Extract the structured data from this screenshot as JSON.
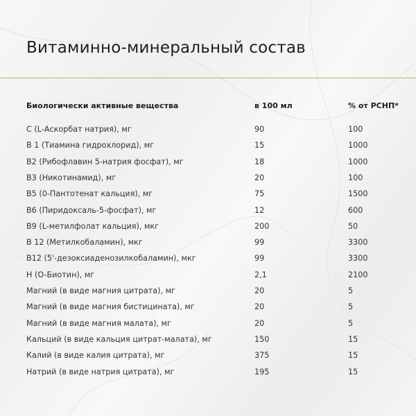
{
  "title": "Витаминно-минеральный состав",
  "accent_color": "#c9a97a",
  "table": {
    "headers": [
      "Биологически активные вещества",
      "в 100 мл",
      "% от РСНП*"
    ],
    "rows": [
      [
        "C (L-Аскорбат натрия), мг",
        "90",
        "100"
      ],
      [
        "B 1 (Тиамина гидрохлорид), мг",
        "15",
        "1000"
      ],
      [
        "B2 (Рибофлавин 5-натрия фосфат), мг",
        "18",
        "1000"
      ],
      [
        "B3 (Никотинамид), мг",
        "20",
        "100"
      ],
      [
        "B5 (0-Пантотенат кальция), мг",
        "75",
        "1500"
      ],
      [
        "B6 (Пиридоксаль-5-фосфат), мг",
        "12",
        "600"
      ],
      [
        "B9 (L-метилфолат кальция), мкг",
        "200",
        "50"
      ],
      [
        "B 12 (Метилкобаламин), мкг",
        "99",
        "3300"
      ],
      [
        "B12 (5'-дезоксиаденозилкобаламин), мкг",
        "99",
        "3300"
      ],
      [
        "H (O-Биотин), мг",
        "2,1",
        "2100"
      ],
      [
        "Магний (в виде магния цитрата), мг",
        "20",
        "5"
      ],
      [
        "Магний (в виде магния бистицината), мг",
        "20",
        "5"
      ],
      [
        "Магний (в виде магния малата), мг",
        "20",
        "5"
      ],
      [
        "Кальций (в виде кальция цитрат-малата), мг",
        "150",
        "15"
      ],
      [
        "Калий (в виде калия цитрата), мг",
        "375",
        "15"
      ],
      [
        "Натрий (в виде натрия цитрата), мг",
        "195",
        "15"
      ]
    ]
  }
}
